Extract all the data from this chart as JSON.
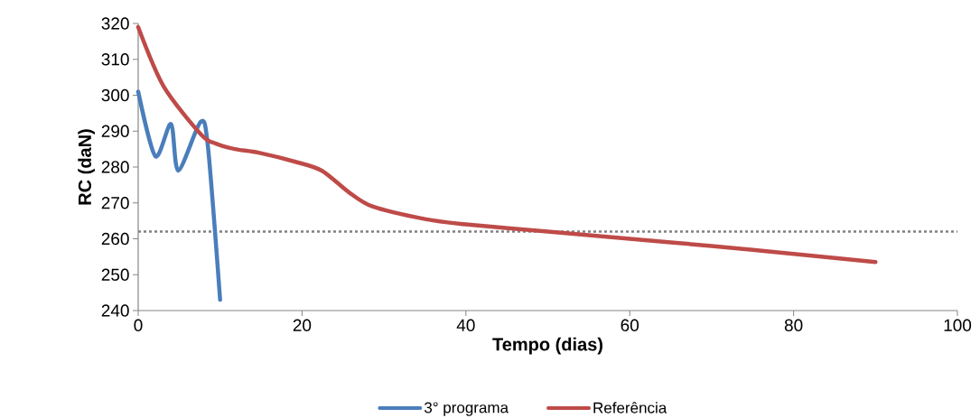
{
  "chart_data": {
    "type": "line",
    "xlabel": "Tempo (dias)",
    "ylabel": "RC (daN)",
    "xlim": [
      0,
      100
    ],
    "ylim": [
      240,
      320
    ],
    "xticks": [
      0,
      20,
      40,
      60,
      80,
      100
    ],
    "yticks": [
      240,
      250,
      260,
      270,
      280,
      290,
      300,
      310,
      320
    ],
    "legend": "bottom",
    "grid": false,
    "series": [
      {
        "name": "3° programa",
        "color": "#4a7ebb",
        "x": [
          0,
          2.1,
          4,
          4.9,
          7.6,
          8.5,
          10
        ],
        "values": [
          301,
          283,
          292,
          279,
          292.5,
          286,
          243
        ]
      },
      {
        "name": "Referência",
        "color": "#be4b48",
        "x": [
          0,
          3.1,
          7.7,
          9.5,
          11.8,
          14.7,
          19.1,
          22.4,
          25.7,
          28.6,
          35,
          40,
          50,
          60,
          70,
          80,
          90
        ],
        "values": [
          319,
          302.5,
          289,
          286.5,
          285,
          284,
          281.5,
          279,
          273,
          269,
          265.5,
          264,
          262,
          260,
          258,
          255.8,
          253.5
        ]
      }
    ],
    "ref_lines": [
      {
        "axis": "y",
        "value": 262,
        "color": "#808080",
        "line_style": "dotted"
      }
    ]
  }
}
